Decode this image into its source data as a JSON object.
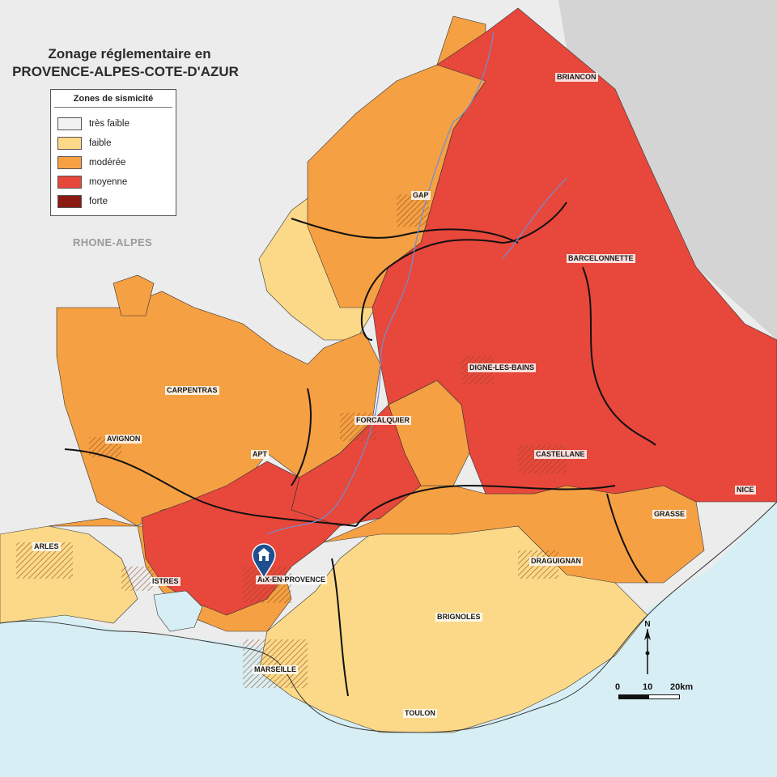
{
  "title": {
    "line1": "Zonage réglementaire en",
    "line2": "PROVENCE-ALPES-COTE-D'AZUR"
  },
  "legend": {
    "title": "Zones de sismicité",
    "items": [
      {
        "label": "très faible",
        "color": "#f2f2f2"
      },
      {
        "label": "faible",
        "color": "#fbd988"
      },
      {
        "label": "modérée",
        "color": "#f5a043"
      },
      {
        "label": "moyenne",
        "color": "#e8473b"
      },
      {
        "label": "forte",
        "color": "#8b1a12"
      }
    ]
  },
  "neighbor_region": "RHONE-ALPES",
  "cities": [
    {
      "name": "BRIANCON"
    },
    {
      "name": "GAP"
    },
    {
      "name": "BARCELONNETTE"
    },
    {
      "name": "DIGNE-LES-BAINS"
    },
    {
      "name": "CARPENTRAS"
    },
    {
      "name": "AVIGNON"
    },
    {
      "name": "APT"
    },
    {
      "name": "FORCALQUIER"
    },
    {
      "name": "CASTELLANE"
    },
    {
      "name": "NICE"
    },
    {
      "name": "GRASSE"
    },
    {
      "name": "ARLES"
    },
    {
      "name": "ISTRES"
    },
    {
      "name": "AIX-EN-PROVENCE"
    },
    {
      "name": "DRAGUIGNAN"
    },
    {
      "name": "BRIGNOLES"
    },
    {
      "name": "MARSEILLE"
    },
    {
      "name": "TOULON"
    }
  ],
  "scale": {
    "ticks": [
      "0",
      "10",
      "20km"
    ]
  },
  "north_label": "N",
  "colors": {
    "sea": "#d8eef5",
    "outside": "#dcdcdc",
    "hatch": "#a0522d",
    "river": "#6f8fd6",
    "marker": "#1f4f8f"
  },
  "marker": {
    "icon": "home-marker-icon"
  }
}
